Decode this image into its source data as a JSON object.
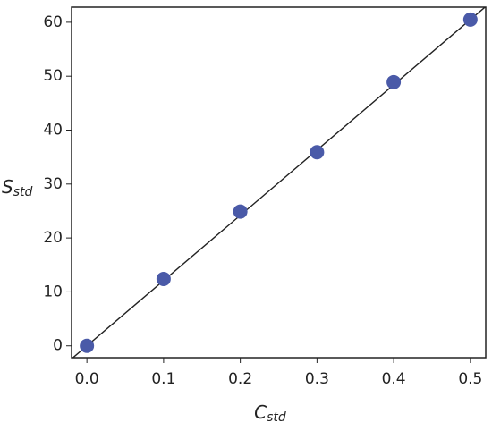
{
  "chart_data": {
    "type": "scatter",
    "xlabel": {
      "symbol": "C",
      "subscript": "std"
    },
    "ylabel": {
      "symbol": "S",
      "subscript": "std"
    },
    "x": [
      0,
      0.1,
      0.2,
      0.3,
      0.4,
      0.5
    ],
    "values": [
      0,
      12.4,
      24.9,
      35.9,
      48.9,
      60.5
    ],
    "color": "#4a5aa8",
    "fit_line": {
      "slope": 121,
      "intercept": 0,
      "color": "#222222"
    },
    "xlim": [
      -0.02,
      0.52
    ],
    "ylim": [
      -2.2,
      62.8
    ],
    "xticks": [
      {
        "value": 0,
        "label": "0.0"
      },
      0.1,
      0.2,
      0.3,
      0.4,
      0.5
    ],
    "yticks": [
      0,
      10,
      20,
      30,
      40,
      50,
      60
    ]
  }
}
